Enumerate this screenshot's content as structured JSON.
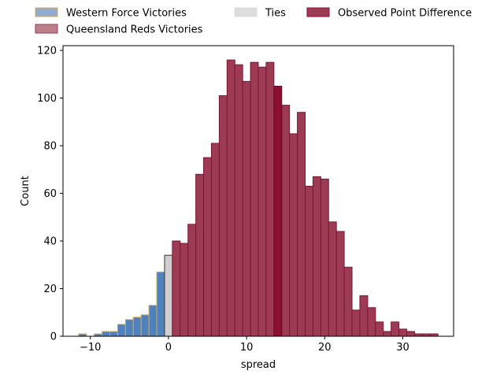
{
  "chart_data": {
    "type": "bar",
    "xlabel": "spread",
    "ylabel": "Count",
    "xlim": [
      -13.5,
      36.5
    ],
    "ylim": [
      0,
      122
    ],
    "xticks": [
      -10,
      0,
      10,
      20,
      30
    ],
    "yticks": [
      0,
      20,
      40,
      60,
      80,
      100,
      120
    ],
    "bin_width": 1,
    "legend": {
      "placement": "top, above plot",
      "entries": [
        {
          "label": "Western Force Victories",
          "fill": "#90acd3",
          "stroke": "#dba84a"
        },
        {
          "label": "Queensland Reds Victories",
          "fill": "#be7f8c",
          "stroke": "#9a3e55"
        },
        {
          "label": "Ties",
          "fill": "#dddddd",
          "stroke": "#dddddd"
        },
        {
          "label": "Observed Point Difference",
          "fill": "#9d3b55",
          "stroke": "#8a0f30"
        }
      ]
    },
    "series": [
      {
        "name": "Western Force Victories",
        "color": "#4f81bd",
        "edge": "#dba84a",
        "bins": [
          {
            "x": -11,
            "count": 1
          },
          {
            "x": -10,
            "count": 0
          },
          {
            "x": -9,
            "count": 1
          },
          {
            "x": -8,
            "count": 2
          },
          {
            "x": -7,
            "count": 2
          },
          {
            "x": -6,
            "count": 5
          },
          {
            "x": -5,
            "count": 7
          },
          {
            "x": -4,
            "count": 8
          },
          {
            "x": -3,
            "count": 9
          },
          {
            "x": -2,
            "count": 13
          },
          {
            "x": -1,
            "count": 27
          }
        ]
      },
      {
        "name": "Ties",
        "color": "#cfcfcf",
        "edge": "#333333",
        "bins": [
          {
            "x": 0,
            "count": 34
          }
        ]
      },
      {
        "name": "Queensland Reds Victories",
        "color": "#9d3b55",
        "edge": "#7a1632",
        "bins": [
          {
            "x": 1,
            "count": 40
          },
          {
            "x": 2,
            "count": 39
          },
          {
            "x": 3,
            "count": 47
          },
          {
            "x": 4,
            "count": 68
          },
          {
            "x": 5,
            "count": 75
          },
          {
            "x": 6,
            "count": 81
          },
          {
            "x": 7,
            "count": 101
          },
          {
            "x": 8,
            "count": 116
          },
          {
            "x": 9,
            "count": 114
          },
          {
            "x": 10,
            "count": 107
          },
          {
            "x": 11,
            "count": 115
          },
          {
            "x": 12,
            "count": 113
          },
          {
            "x": 13,
            "count": 115
          },
          {
            "x": 15,
            "count": 97
          },
          {
            "x": 16,
            "count": 85
          },
          {
            "x": 17,
            "count": 94
          },
          {
            "x": 18,
            "count": 63
          },
          {
            "x": 19,
            "count": 67
          },
          {
            "x": 20,
            "count": 66
          },
          {
            "x": 21,
            "count": 48
          },
          {
            "x": 22,
            "count": 44
          },
          {
            "x": 23,
            "count": 29
          },
          {
            "x": 24,
            "count": 11
          },
          {
            "x": 25,
            "count": 17
          },
          {
            "x": 26,
            "count": 12
          },
          {
            "x": 27,
            "count": 6
          },
          {
            "x": 28,
            "count": 2
          },
          {
            "x": 29,
            "count": 6
          },
          {
            "x": 30,
            "count": 3
          },
          {
            "x": 31,
            "count": 2
          },
          {
            "x": 32,
            "count": 1
          },
          {
            "x": 33,
            "count": 1
          },
          {
            "x": 34,
            "count": 1
          }
        ]
      },
      {
        "name": "Observed Point Difference",
        "color": "#8a0f30",
        "edge": "#6e0a26",
        "bins": [
          {
            "x": 14,
            "count": 105
          }
        ]
      }
    ]
  }
}
